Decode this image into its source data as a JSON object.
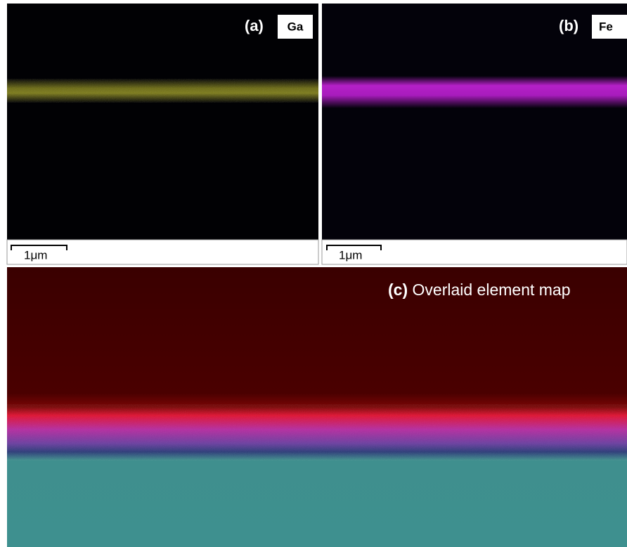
{
  "panels": [
    {
      "label": "(a)",
      "element": "Ga",
      "scale": "1μm"
    },
    {
      "label": "(b)",
      "element": "Fe",
      "scale": "1μm"
    },
    {
      "label": "(c)",
      "caption": "Overlaid element map"
    }
  ]
}
